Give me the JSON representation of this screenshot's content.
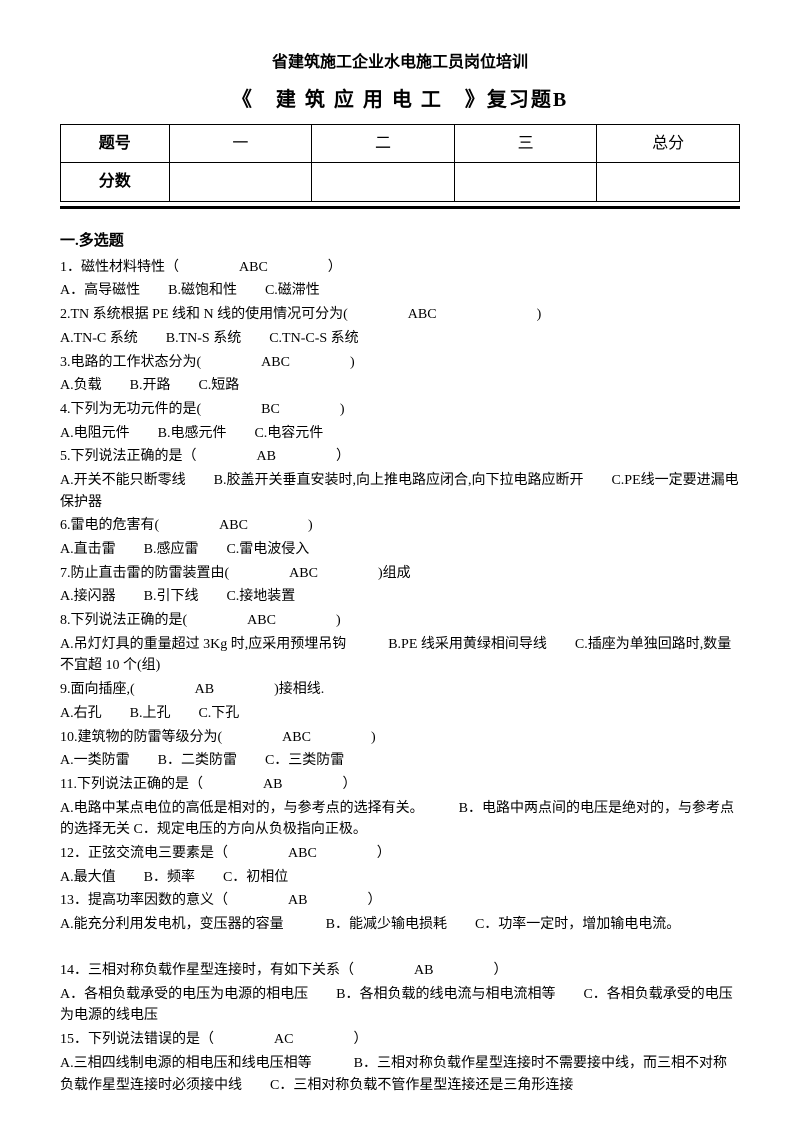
{
  "header": {
    "subtitle": "省建筑施工企业水电施工员岗位培训",
    "title": "《　建 筑 应 用 电 工　》复习题B"
  },
  "score_table": {
    "row_label_1": "题号",
    "row_label_2": "分数",
    "cols": [
      "一",
      "二",
      "三",
      "总分"
    ]
  },
  "section1": {
    "title": "一.多选题",
    "questions": [
      {
        "num": "1．",
        "text": "磁性材料特性（",
        "answer": "ABC",
        "closer": "）",
        "options": "A．高导磁性　　B.磁饱和性　　C.磁滞性"
      },
      {
        "num": "2.",
        "text": "TN 系统根据 PE 线和 N 线的使用情况可分为(",
        "answer": "ABC",
        "closer": ")",
        "options": "A.TN-C 系统　　B.TN-S 系统　　C.TN-C-S 系统"
      },
      {
        "num": "3.",
        "text": "电路的工作状态分为(",
        "answer": "ABC",
        "closer": ")",
        "options": "A.负载　　B.开路　　C.短路"
      },
      {
        "num": "4.",
        "text": "下列为无功元件的是(",
        "answer": "BC",
        "closer": ")",
        "options": "A.电阻元件　　B.电感元件　　C.电容元件"
      },
      {
        "num": "5.",
        "text": "下列说法正确的是（",
        "answer": "AB",
        "closer": "）",
        "options": "A.开关不能只断零线　　B.胶盖开关垂直安装时,向上推电路应闭合,向下拉电路应断开　　C.PE线一定要进漏电保护器"
      },
      {
        "num": "6.",
        "text": "雷电的危害有(",
        "answer": "ABC",
        "closer": ")",
        "options": "A.直击雷　　B.感应雷　　C.雷电波侵入"
      },
      {
        "num": "7.",
        "text": "防止直击雷的防雷装置由(",
        "answer": "ABC",
        "closer": ")组成",
        "options": "A.接闪器　　B.引下线　　C.接地装置"
      },
      {
        "num": "8.",
        "text": "下列说法正确的是(",
        "answer": "ABC",
        "closer": ")",
        "options": "A.吊灯灯具的重量超过 3Kg 时,应采用预埋吊钩　　　B.PE 线采用黄绿相间导线　　C.插座为单独回路时,数量不宜超 10 个(组)"
      },
      {
        "num": "9.",
        "text": "面向插座,(",
        "answer": "AB",
        "closer": ")接相线.",
        "options": "A.右孔　　B.上孔　　C.下孔"
      },
      {
        "num": "10.",
        "text": "建筑物的防雷等级分为(",
        "answer": "ABC",
        "closer": ")",
        "options": "A.一类防雷　　B．二类防雷　　C．三类防雷"
      },
      {
        "num": "11.",
        "text": "下列说法正确的是（",
        "answer": "AB",
        "closer": "）",
        "options": "A.电路中某点电位的高低是相对的，与参考点的选择有关。　　　B．电路中两点间的电压是绝对的，与参考点的选择无关 C．规定电压的方向从负极指向正极。"
      },
      {
        "num": "12．",
        "text": "正弦交流电三要素是（",
        "answer": "ABC",
        "closer": "）",
        "options": "A.最大值　　B．频率　　C．初相位"
      },
      {
        "num": "13．",
        "text": "提高功率因数的意义（",
        "answer": "AB",
        "closer": "）",
        "options": "A.能充分利用发电机，变压器的容量　　　B．能减少输电损耗　　C．功率一定时，增加输电电流。"
      },
      {
        "num": "14．",
        "text": "三相对称负载作星型连接时，有如下关系（",
        "answer": "AB",
        "closer": "）",
        "options": "A．各相负载承受的电压为电源的相电压　　B．各相负载的线电流与相电流相等　　C．各相负载承受的电压为电源的线电压"
      },
      {
        "num": "15．",
        "text": "下列说法错误的是（",
        "answer": "AC",
        "closer": "）",
        "options": "A.三相四线制电源的相电压和线电压相等　　　B．三相对称负载作星型连接时不需要接中线，而三相不对称负载作星型连接时必须接中线　　C．三相对称负载不管作星型连接还是三角形连接"
      }
    ]
  }
}
